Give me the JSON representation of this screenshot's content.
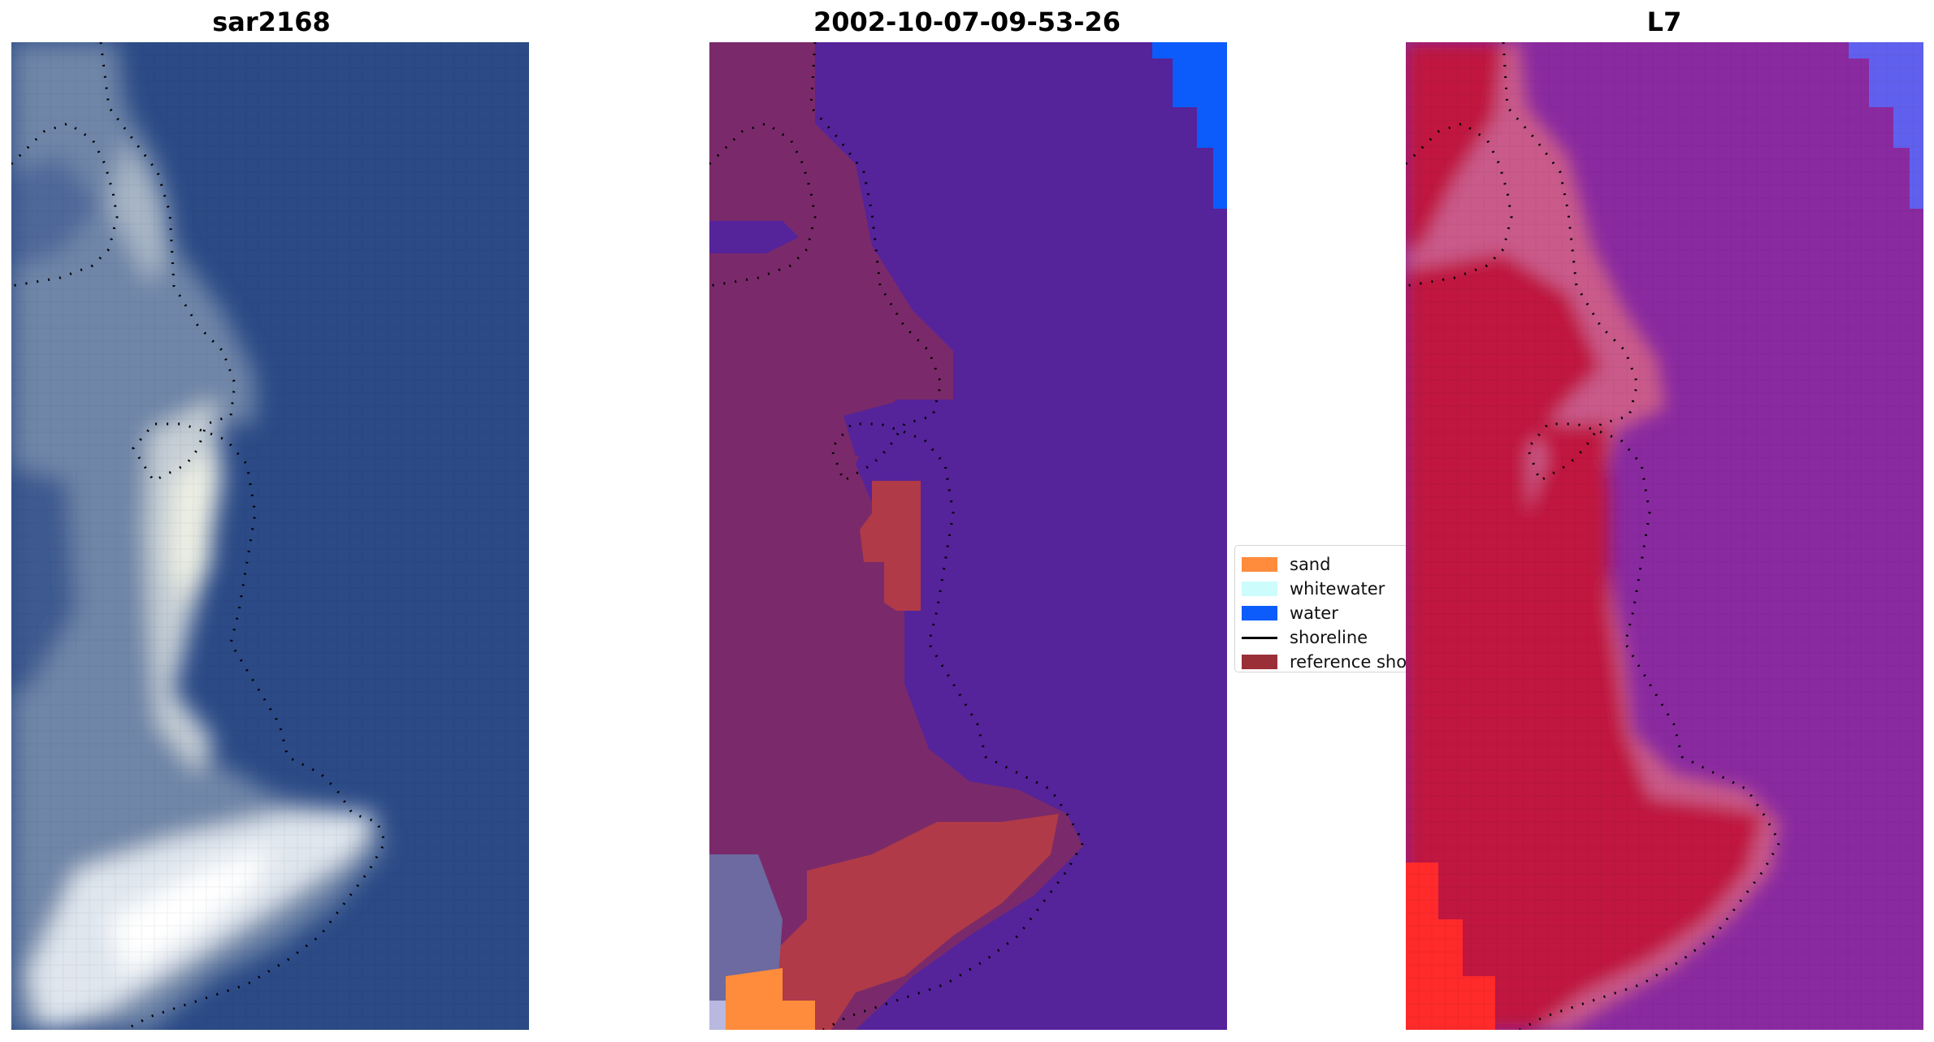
{
  "panels": [
    {
      "title": "sar2168",
      "icon": "rgb-satellite-image"
    },
    {
      "title": "2002-10-07-09-53-26",
      "icon": "classified-image"
    },
    {
      "title": "L7",
      "icon": "mndwi-image"
    }
  ],
  "legend": {
    "items": [
      {
        "label": "sand",
        "color": "#ff8c3c",
        "kind": "patch"
      },
      {
        "label": "whitewater",
        "color": "#ccfcfc",
        "kind": "patch"
      },
      {
        "label": "water",
        "color": "#0b5cfb",
        "kind": "patch"
      },
      {
        "label": "shoreline",
        "color": "#000000",
        "kind": "line"
      },
      {
        "label": "reference sho",
        "color": "#9a2f37",
        "kind": "patch"
      }
    ]
  },
  "colors": {
    "rgb_water": "#2b4a86",
    "rgb_land": "#6f86a8",
    "class_water": "#55239a",
    "class_land": "#7a2a6a",
    "class_sand": "#ff8c3c",
    "class_reference": "#b03a48",
    "mndwi_land": "#c0153f",
    "mndwi_water": "#8a2aa0"
  }
}
